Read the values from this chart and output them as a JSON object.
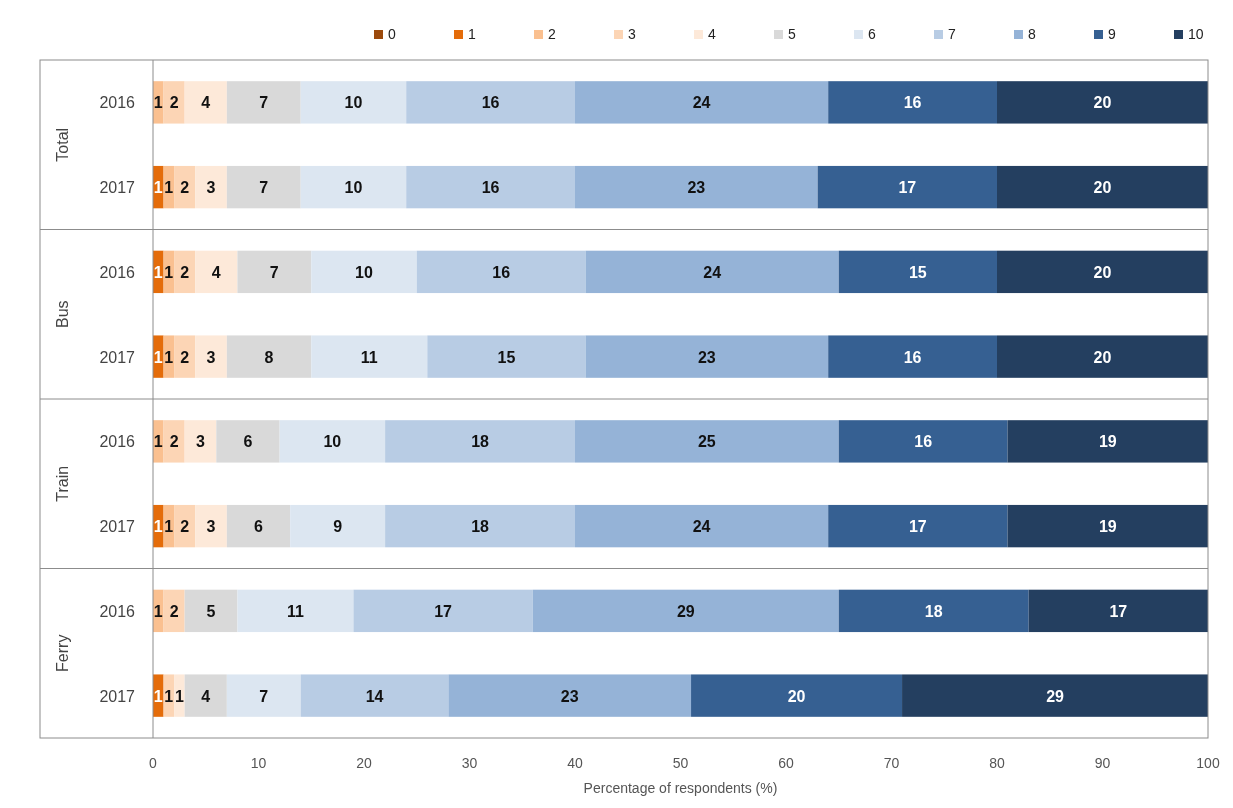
{
  "chart_data": {
    "type": "bar",
    "orientation": "horizontal",
    "stacked": true,
    "data_labels": true,
    "legend": "top",
    "xlabel": "Percentage of respondents (%)",
    "xlim": [
      0,
      100
    ],
    "xticks": [
      0,
      10,
      20,
      30,
      40,
      50,
      60,
      70,
      80,
      90,
      100
    ],
    "categories": [
      "2016",
      "2017",
      "2016",
      "2017",
      "2016",
      "2017",
      "2016",
      "2017"
    ],
    "annotations": [
      "Total",
      "Bus",
      "Train",
      "Ferry"
    ],
    "series": [
      {
        "name": "0",
        "color": "#9c4a0c",
        "values": [
          null,
          null,
          null,
          null,
          null,
          null,
          null,
          null
        ]
      },
      {
        "name": "1",
        "color": "#e46c0a",
        "values": [
          null,
          1,
          1,
          1,
          null,
          1,
          null,
          1
        ]
      },
      {
        "name": "2",
        "color": "#fac090",
        "values": [
          1,
          1,
          1,
          1,
          1,
          1,
          1,
          null
        ]
      },
      {
        "name": "3",
        "color": "#fcd5b5",
        "values": [
          2,
          2,
          2,
          2,
          2,
          2,
          2,
          1
        ]
      },
      {
        "name": "4",
        "color": "#fde9d9",
        "values": [
          4,
          3,
          4,
          3,
          3,
          3,
          null,
          1
        ]
      },
      {
        "name": "5",
        "color": "#d9d9d9",
        "values": [
          7,
          7,
          7,
          8,
          6,
          6,
          5,
          4
        ]
      },
      {
        "name": "6",
        "color": "#dce6f1",
        "values": [
          10,
          10,
          10,
          11,
          10,
          9,
          11,
          7
        ]
      },
      {
        "name": "7",
        "color": "#b8cce4",
        "values": [
          16,
          16,
          16,
          15,
          18,
          18,
          17,
          14
        ]
      },
      {
        "name": "8",
        "color": "#95b3d7",
        "values": [
          24,
          23,
          24,
          23,
          25,
          24,
          29,
          23
        ]
      },
      {
        "name": "9",
        "color": "#366092",
        "values": [
          16,
          17,
          15,
          16,
          16,
          17,
          18,
          20
        ]
      },
      {
        "name": "10",
        "color": "#243f60",
        "values": [
          20,
          20,
          20,
          20,
          19,
          19,
          17,
          29
        ]
      }
    ]
  }
}
